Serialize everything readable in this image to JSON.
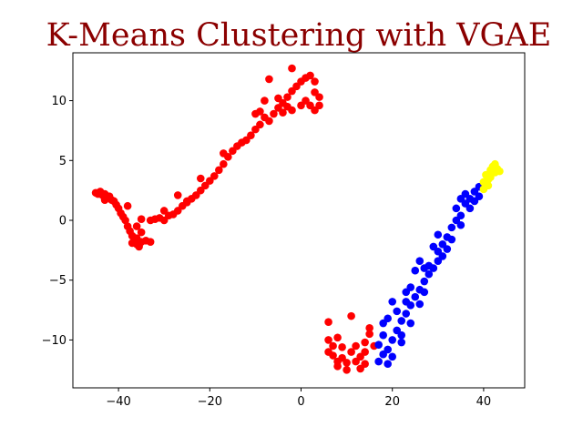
{
  "chart_data": {
    "type": "scatter",
    "title": "K-Means Clustering with VGAE",
    "title_color": "#8b0000",
    "xlabel": "",
    "ylabel": "",
    "xlim": [
      -50,
      49
    ],
    "ylim": [
      -14,
      14
    ],
    "xticks": [
      -40,
      -20,
      0,
      20,
      40
    ],
    "yticks": [
      -10,
      -5,
      0,
      5,
      10
    ],
    "xtick_labels": [
      "−40",
      "−20",
      "0",
      "20",
      "40"
    ],
    "ytick_labels": [
      "−10",
      "−5",
      "0",
      "5",
      "10"
    ],
    "grid": false,
    "legend": false,
    "series": [
      {
        "color": "#ff0000",
        "points": [
          [
            -45,
            2.3
          ],
          [
            -44.5,
            2.2
          ],
          [
            -44,
            2.4
          ],
          [
            -43.5,
            2.1
          ],
          [
            -43,
            2.2
          ],
          [
            -42.5,
            1.9
          ],
          [
            -42,
            2.0
          ],
          [
            -41.5,
            1.7
          ],
          [
            -41,
            1.6
          ],
          [
            -40.5,
            1.3
          ],
          [
            -40,
            1.0
          ],
          [
            -39.5,
            0.6
          ],
          [
            -39,
            0.3
          ],
          [
            -38.5,
            0.0
          ],
          [
            -38,
            -0.5
          ],
          [
            -37.5,
            -0.9
          ],
          [
            -37,
            -1.3
          ],
          [
            -36.5,
            -1.7
          ],
          [
            -36,
            -2.0
          ],
          [
            -35.5,
            -2.2
          ],
          [
            -37,
            -1.9
          ],
          [
            -36,
            -1.5
          ],
          [
            -35,
            -1.0
          ],
          [
            -35,
            -1.8
          ],
          [
            -34,
            -1.7
          ],
          [
            -33,
            -1.8
          ],
          [
            -36,
            -0.5
          ],
          [
            -35,
            0.1
          ],
          [
            -33,
            0.0
          ],
          [
            -31,
            0.2
          ],
          [
            -30,
            0.0
          ],
          [
            -29,
            0.4
          ],
          [
            -28,
            0.5
          ],
          [
            -27,
            0.8
          ],
          [
            -26,
            1.2
          ],
          [
            -25,
            1.5
          ],
          [
            -24,
            1.8
          ],
          [
            -23,
            2.1
          ],
          [
            -22,
            2.5
          ],
          [
            -21,
            2.9
          ],
          [
            -20,
            3.3
          ],
          [
            -27,
            2.1
          ],
          [
            -25,
            1.6
          ],
          [
            -19,
            3.7
          ],
          [
            -18,
            4.2
          ],
          [
            -17,
            4.7
          ],
          [
            -16,
            5.3
          ],
          [
            -15,
            5.8
          ],
          [
            -14,
            6.2
          ],
          [
            -13,
            6.5
          ],
          [
            -12,
            6.7
          ],
          [
            -11,
            7.1
          ],
          [
            -10,
            7.6
          ],
          [
            -9,
            8.0
          ],
          [
            -8,
            8.6
          ],
          [
            -9,
            9.1
          ],
          [
            -7,
            8.3
          ],
          [
            -6,
            8.9
          ],
          [
            -5,
            9.4
          ],
          [
            -4,
            9.8
          ],
          [
            -3,
            10.3
          ],
          [
            -2,
            10.8
          ],
          [
            -1,
            11.2
          ],
          [
            0,
            11.6
          ],
          [
            1,
            11.9
          ],
          [
            2,
            12.1
          ],
          [
            3,
            11.6
          ],
          [
            3,
            10.7
          ],
          [
            4,
            10.3
          ],
          [
            4,
            9.6
          ],
          [
            3,
            9.2
          ],
          [
            2,
            9.6
          ],
          [
            1,
            10.0
          ],
          [
            -2,
            9.2
          ],
          [
            -5,
            10.2
          ],
          [
            -7,
            11.8
          ],
          [
            -2,
            12.7
          ],
          [
            -8,
            10.0
          ],
          [
            -10,
            8.9
          ],
          [
            -4,
            9.0
          ],
          [
            -3,
            9.5
          ],
          [
            0,
            9.6
          ],
          [
            -17,
            5.6
          ],
          [
            -22,
            3.5
          ],
          [
            -30,
            0.8
          ],
          [
            -32,
            0.1
          ],
          [
            -38,
            1.2
          ],
          [
            -43,
            1.7
          ],
          [
            6,
            -8.5
          ],
          [
            6,
            -10.0
          ],
          [
            6,
            -11.0
          ],
          [
            7,
            -11.3
          ],
          [
            7,
            -10.5
          ],
          [
            8,
            -11.8
          ],
          [
            8,
            -12.2
          ],
          [
            9,
            -11.5
          ],
          [
            9,
            -10.6
          ],
          [
            10,
            -11.9
          ],
          [
            10,
            -12.5
          ],
          [
            11,
            -8.0
          ],
          [
            11,
            -11.0
          ],
          [
            12,
            -10.5
          ],
          [
            12,
            -11.8
          ],
          [
            13,
            -12.4
          ],
          [
            13,
            -11.4
          ],
          [
            14,
            -11.0
          ],
          [
            14,
            -10.2
          ],
          [
            15,
            -9.5
          ],
          [
            15,
            -9.0
          ],
          [
            16,
            -10.5
          ],
          [
            14,
            -12.0
          ],
          [
            8,
            -9.8
          ]
        ]
      },
      {
        "color": "#0000ff",
        "points": [
          [
            17,
            -11.8
          ],
          [
            17,
            -10.4
          ],
          [
            18,
            -11.2
          ],
          [
            18,
            -9.6
          ],
          [
            18,
            -8.6
          ],
          [
            19,
            -10.8
          ],
          [
            19,
            -8.2
          ],
          [
            20,
            -6.8
          ],
          [
            20,
            -10.0
          ],
          [
            21,
            -9.2
          ],
          [
            21,
            -7.6
          ],
          [
            22,
            -8.4
          ],
          [
            22,
            -9.6
          ],
          [
            23,
            -6.8
          ],
          [
            23,
            -7.8
          ],
          [
            24,
            -5.6
          ],
          [
            24,
            -7.1
          ],
          [
            25,
            -6.4
          ],
          [
            25,
            -4.2
          ],
          [
            26,
            -5.8
          ],
          [
            26,
            -3.4
          ],
          [
            27,
            -5.1
          ],
          [
            27,
            -6.0
          ],
          [
            28,
            -4.5
          ],
          [
            28,
            -3.8
          ],
          [
            29,
            -4.0
          ],
          [
            30,
            -2.6
          ],
          [
            30,
            -3.4
          ],
          [
            31,
            -2.0
          ],
          [
            31,
            -3.0
          ],
          [
            32,
            -1.4
          ],
          [
            32,
            -2.4
          ],
          [
            33,
            -0.6
          ],
          [
            33,
            -1.6
          ],
          [
            34,
            0.0
          ],
          [
            34,
            1.0
          ],
          [
            35,
            0.4
          ],
          [
            35,
            -0.4
          ],
          [
            36,
            1.4
          ],
          [
            36,
            2.2
          ],
          [
            37,
            1.0
          ],
          [
            37,
            1.8
          ],
          [
            38,
            2.4
          ],
          [
            38,
            1.6
          ],
          [
            39,
            2.8
          ],
          [
            39,
            2.0
          ],
          [
            24,
            -8.6
          ],
          [
            22,
            -10.2
          ],
          [
            20,
            -11.4
          ],
          [
            29,
            -2.2
          ],
          [
            26,
            -7.0
          ],
          [
            30,
            -1.2
          ],
          [
            35,
            1.8
          ],
          [
            23,
            -6.0
          ],
          [
            19,
            -12.0
          ],
          [
            27,
            -4.0
          ]
        ]
      },
      {
        "color": "#ffff00",
        "points": [
          [
            40,
            2.6
          ],
          [
            40,
            3.2
          ],
          [
            40.5,
            3.8
          ],
          [
            41,
            3.4
          ],
          [
            41,
            2.9
          ],
          [
            41.5,
            4.2
          ],
          [
            42,
            4.0
          ],
          [
            42,
            4.5
          ],
          [
            42.5,
            4.7
          ],
          [
            43,
            4.3
          ],
          [
            43.5,
            4.1
          ],
          [
            40.5,
            3.0
          ],
          [
            41.5,
            3.6
          ],
          [
            42.5,
            4.0
          ]
        ]
      }
    ]
  }
}
